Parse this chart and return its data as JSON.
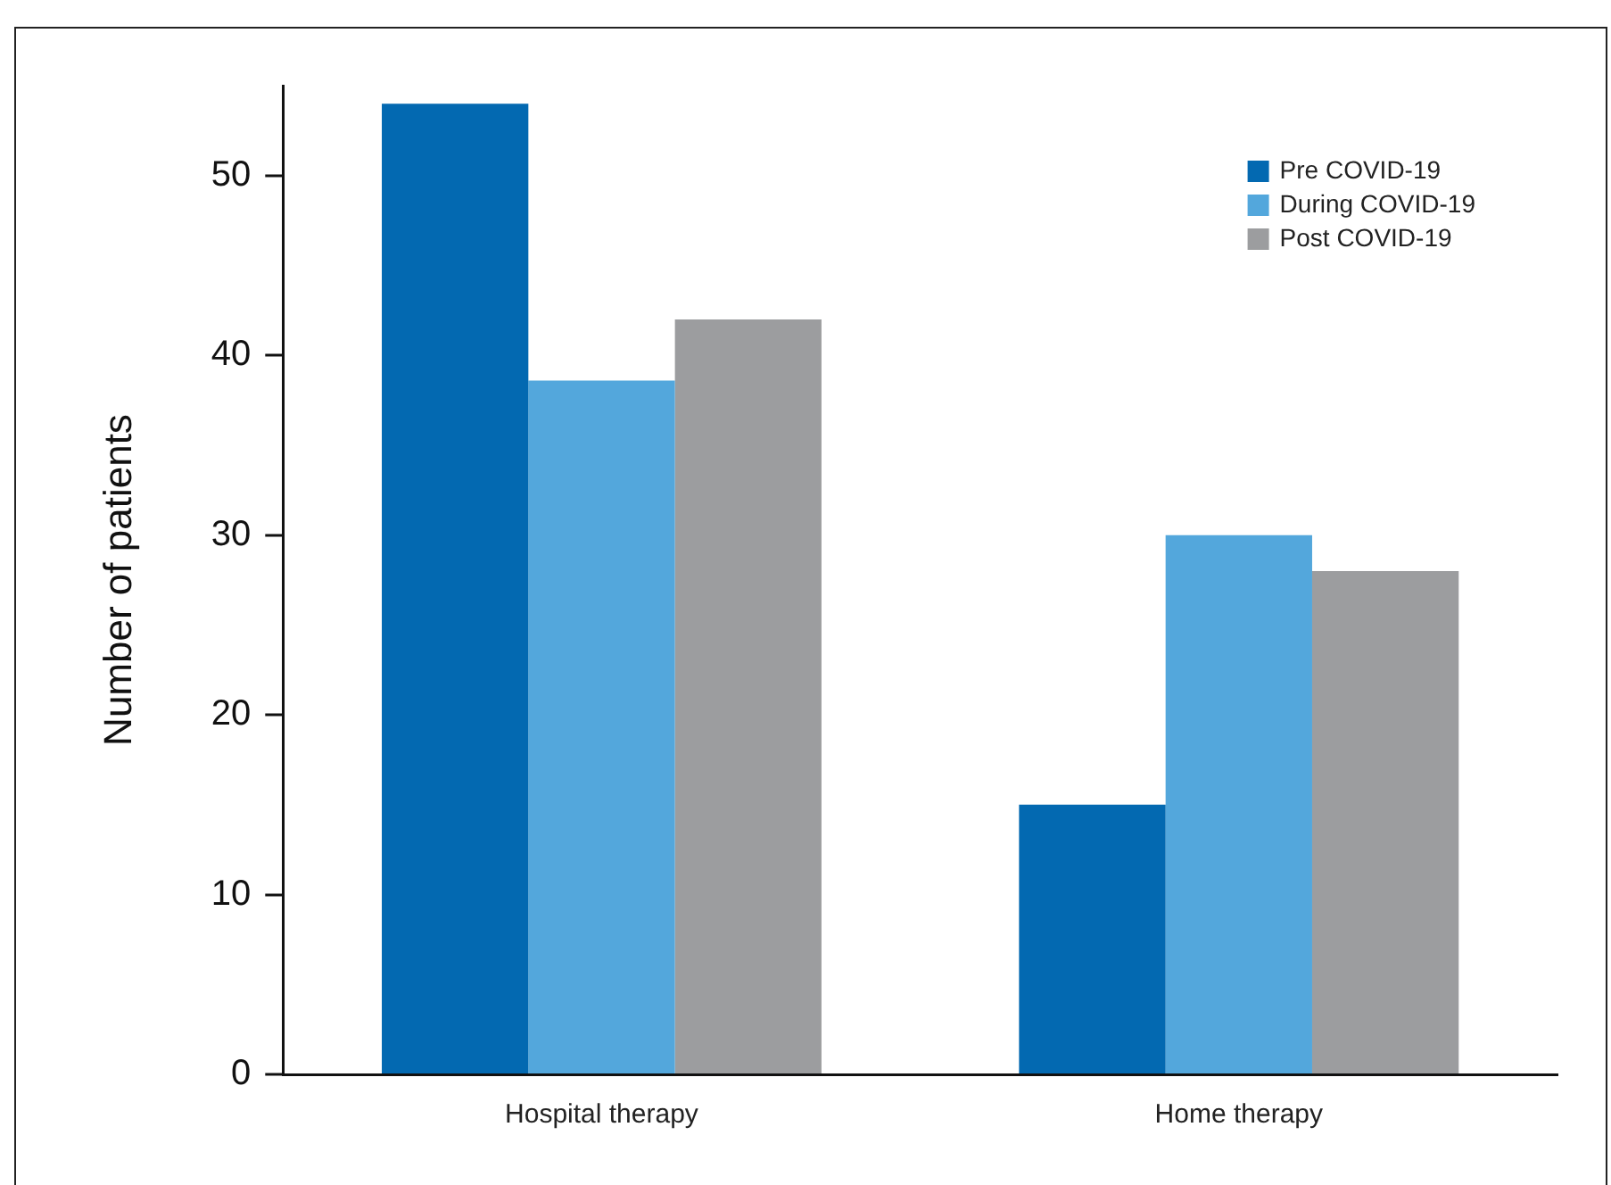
{
  "chart_data": {
    "type": "bar",
    "ylabel": "Number of patients",
    "categories": [
      "Hospital therapy",
      "Home therapy"
    ],
    "series": [
      {
        "name": "Pre COVID-19",
        "color": "#0369b1",
        "values": [
          54,
          15
        ]
      },
      {
        "name": "During COVID-19",
        "color": "#53a7dc",
        "values": [
          38.6,
          30
        ]
      },
      {
        "name": "Post COVID-19",
        "color": "#9c9d9f",
        "values": [
          42,
          28
        ]
      }
    ],
    "ylim": [
      0,
      55
    ],
    "yticks": [
      0,
      10,
      20,
      30,
      40,
      50
    ],
    "grid": false,
    "legend": "top right"
  }
}
